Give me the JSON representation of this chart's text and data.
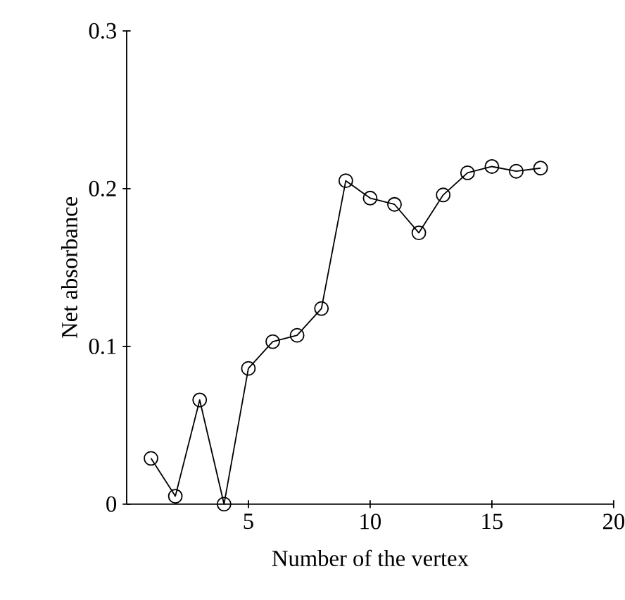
{
  "chart_data": {
    "type": "line",
    "xlabel": "Number of the vertex",
    "ylabel": "Net absorbance",
    "x": [
      1,
      2,
      3,
      4,
      5,
      6,
      7,
      8,
      9,
      10,
      11,
      12,
      13,
      14,
      15,
      16,
      17
    ],
    "values": [
      0.029,
      0.005,
      0.066,
      0,
      0.086,
      0.103,
      0.107,
      0.124,
      0.205,
      0.194,
      0.19,
      0.172,
      0.196,
      0.21,
      0.214,
      0.211,
      0.213
    ],
    "color": "#000000",
    "marker": "circle",
    "line_style": "solid",
    "xlim": [
      0,
      20
    ],
    "xticks": [
      5,
      10,
      15,
      20
    ],
    "ylim": [
      0,
      0.3
    ],
    "yticks": [
      0,
      0.1,
      0.2,
      0.3
    ]
  }
}
